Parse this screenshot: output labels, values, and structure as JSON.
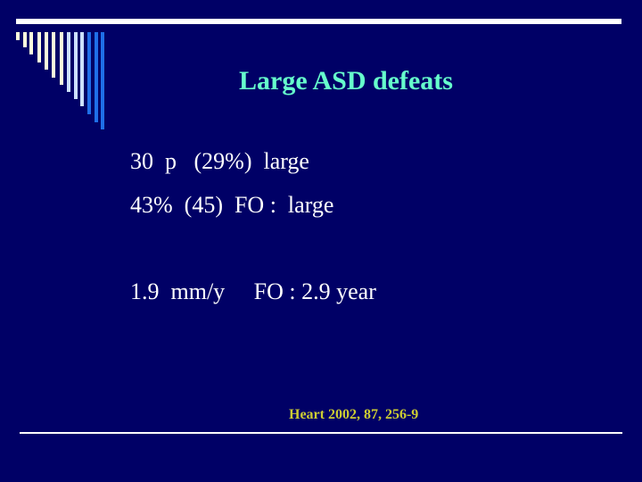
{
  "slide": {
    "title": "Large ASD defeats",
    "lines": [
      "30  p   (29%)  large",
      "43%  (45)  FO :  large",
      "1.9  mm/y     FO : 2.9 year"
    ],
    "reference": "Heart 2002, 87, 256-9"
  },
  "colors": {
    "background": "#000066",
    "title": "#66ffcc",
    "reference": "#cccc33",
    "decor_cream": "#ffffdd",
    "decor_lightblue": "#cce0ff",
    "decor_blue": "#1f6fe8"
  }
}
